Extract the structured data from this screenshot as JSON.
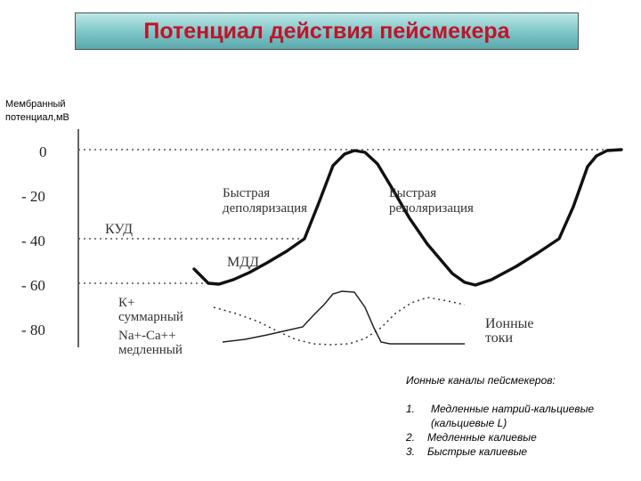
{
  "title": "Потенциал действия пейсмекера",
  "y_axis_title": [
    "Мембранный",
    "потенциал,мВ"
  ],
  "y_ticks": [
    "0",
    "- 20",
    "- 40",
    "- 60",
    "- 80"
  ],
  "labels": {
    "kud": "КУД",
    "mdd": "МДД",
    "fast_depol": [
      "Быстрая",
      "деполяризация"
    ],
    "fast_repol": [
      "Быстрая",
      "реполяризация"
    ],
    "k_current": [
      "К+",
      "суммарный"
    ],
    "naca_current": [
      "Na+-Ca++",
      "медленный"
    ],
    "ion_currents": [
      "Ионные",
      "токи"
    ]
  },
  "legend": {
    "heading": "Ионные каналы пейсмекеров:",
    "items": [
      {
        "num": "1.",
        "text": "Медленные натрий-кальциевые (кальциевые L)"
      },
      {
        "num": "2.",
        "text": "Медленные калиевые"
      },
      {
        "num": "3.",
        "text": "Быстрые калиевые"
      }
    ]
  },
  "colors": {
    "title_text": "#c0142a",
    "title_bg": "#7cc4c6"
  }
}
